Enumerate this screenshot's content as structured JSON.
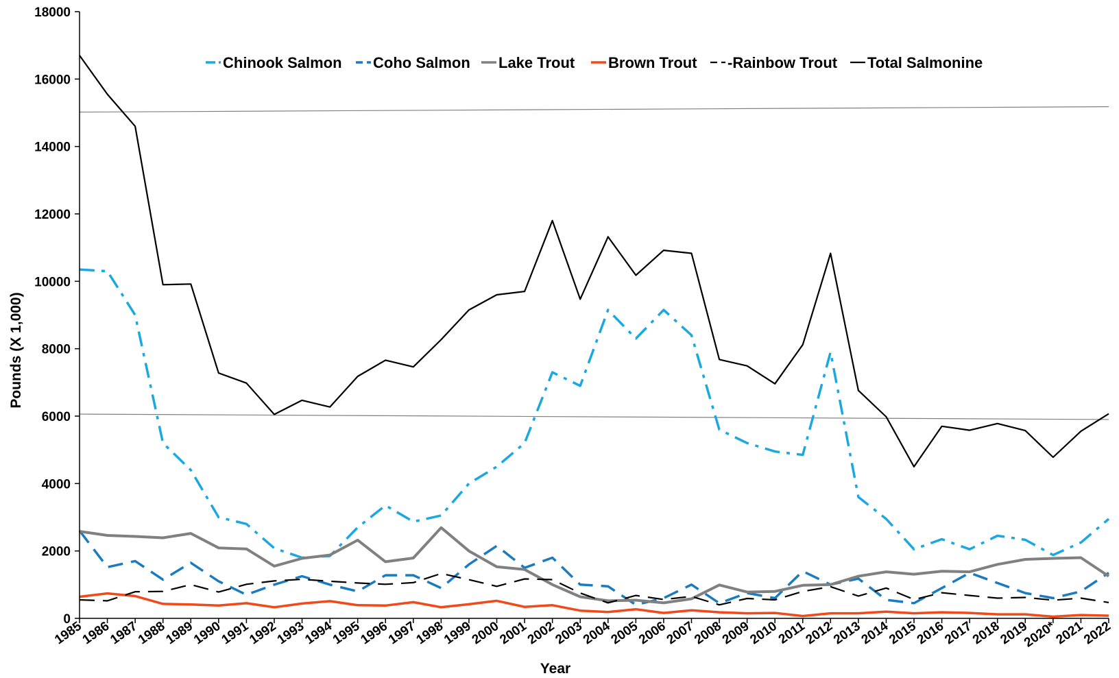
{
  "chart_data": {
    "type": "line",
    "xlabel": "Year",
    "ylabel": "Pounds (X 1,000)",
    "ylim": [
      0,
      18000
    ],
    "yticks": [
      0,
      2000,
      4000,
      6000,
      8000,
      10000,
      12000,
      14000,
      16000,
      18000
    ],
    "grid": false,
    "legend_position": "top",
    "categories": [
      "1985",
      "1986",
      "1987",
      "1988",
      "1989",
      "1990",
      "1991",
      "1992",
      "1993",
      "1994",
      "1995",
      "1996",
      "1997",
      "1998",
      "1999",
      "2000",
      "2001",
      "2002",
      "2003",
      "2004",
      "2005",
      "2006",
      "2007",
      "2008",
      "2009",
      "2010",
      "2011",
      "2012",
      "2013",
      "2014",
      "2015",
      "2016",
      "2017",
      "2018",
      "2019",
      "2020*",
      "2021",
      "2022"
    ],
    "series": [
      {
        "name": "Chinook Salmon",
        "color": "#1ba7e0",
        "dash": "dashdot",
        "values": [
          10350,
          10300,
          9000,
          5200,
          4400,
          3000,
          2800,
          2080,
          1800,
          1850,
          2700,
          3350,
          2870,
          3050,
          4000,
          4500,
          5200,
          7300,
          6900,
          9150,
          8300,
          9150,
          8400,
          5600,
          5200,
          4950,
          4850,
          7900,
          3600,
          2950,
          2050,
          2350,
          2050,
          2450,
          2330,
          1880,
          2250,
          2950
        ]
      },
      {
        "name": "Coho Salmon",
        "color": "#1b7bbf",
        "dash": "dash",
        "values": [
          2600,
          1520,
          1700,
          1150,
          1650,
          1100,
          700,
          1000,
          1250,
          1000,
          800,
          1280,
          1280,
          900,
          1600,
          2150,
          1500,
          1800,
          1000,
          950,
          400,
          600,
          1000,
          450,
          750,
          600,
          1400,
          1000,
          1180,
          550,
          450,
          900,
          1350,
          1050,
          750,
          600,
          800,
          1350
        ]
      },
      {
        "name": "Lake Trout",
        "color": "#808080",
        "dash": "solid",
        "values": [
          2580,
          2460,
          2430,
          2390,
          2520,
          2090,
          2060,
          1550,
          1780,
          1880,
          2320,
          1680,
          1790,
          2690,
          2000,
          1530,
          1450,
          1000,
          640,
          520,
          540,
          460,
          580,
          990,
          780,
          800,
          980,
          1000,
          1250,
          1380,
          1310,
          1400,
          1380,
          1600,
          1750,
          1780,
          1800,
          1250
        ]
      },
      {
        "name": "Brown Trout",
        "color": "#f04a1a",
        "dash": "solid",
        "values": [
          640,
          740,
          660,
          430,
          410,
          380,
          450,
          330,
          440,
          510,
          390,
          380,
          480,
          330,
          420,
          520,
          340,
          390,
          230,
          190,
          270,
          160,
          240,
          180,
          150,
          160,
          70,
          150,
          150,
          200,
          150,
          180,
          160,
          120,
          120,
          50,
          100,
          80
        ]
      },
      {
        "name": "-Rainbow Trout",
        "color": "#000000",
        "dash": "dash",
        "values": [
          550,
          520,
          790,
          800,
          1000,
          780,
          1010,
          1110,
          1160,
          1100,
          1050,
          1010,
          1060,
          1330,
          1150,
          950,
          1170,
          1150,
          750,
          460,
          680,
          560,
          650,
          400,
          590,
          550,
          800,
          940,
          660,
          900,
          560,
          760,
          680,
          600,
          620,
          540,
          600,
          470
        ]
      },
      {
        "name": "Total Salmonine",
        "color": "#000000",
        "dash": "solid",
        "values": [
          16700,
          15550,
          14600,
          9900,
          9920,
          7280,
          6980,
          6050,
          6470,
          6270,
          7180,
          7660,
          7460,
          8270,
          9150,
          9600,
          9700,
          11800,
          9470,
          11320,
          10180,
          10920,
          10830,
          7680,
          7490,
          6960,
          8120,
          10830,
          6760,
          5980,
          4500,
          5700,
          5580,
          5780,
          5570,
          4780,
          5550,
          6070
        ]
      }
    ],
    "reference_lines": [
      {
        "y_start": 15020,
        "y_end": 15180,
        "color": "#808080"
      },
      {
        "y_start": 6060,
        "y_end": 5900,
        "color": "#808080"
      }
    ]
  }
}
